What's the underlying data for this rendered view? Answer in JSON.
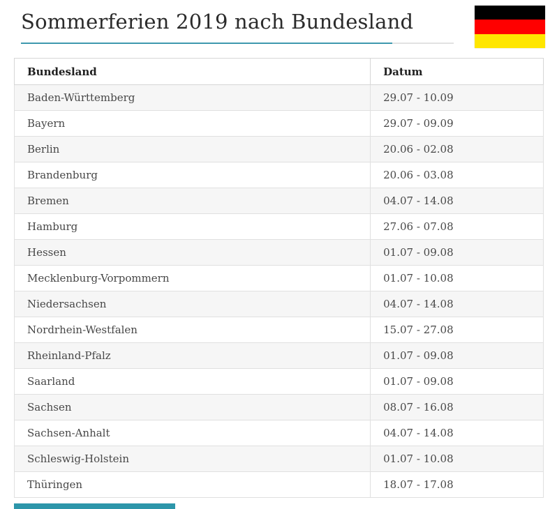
{
  "page": {
    "title": "Sommerferien 2019 nach Bundesland"
  },
  "flag": {
    "name": "german-flag",
    "stripes": [
      "#000000",
      "#ff0000",
      "#ffe600"
    ]
  },
  "accent": {
    "underline_teal": "#3e98ae",
    "underline_gray": "#e2e2e2",
    "bottom_bar": "#2d96aa"
  },
  "table": {
    "headers": [
      "Bundesland",
      "Datum"
    ],
    "rows": [
      {
        "bundesland": "Baden-Württemberg",
        "datum": "29.07 - 10.09"
      },
      {
        "bundesland": "Bayern",
        "datum": "29.07 - 09.09"
      },
      {
        "bundesland": "Berlin",
        "datum": "20.06 - 02.08"
      },
      {
        "bundesland": "Brandenburg",
        "datum": "20.06 - 03.08"
      },
      {
        "bundesland": "Bremen",
        "datum": "04.07 - 14.08"
      },
      {
        "bundesland": "Hamburg",
        "datum": "27.06 - 07.08"
      },
      {
        "bundesland": "Hessen",
        "datum": "01.07 - 09.08"
      },
      {
        "bundesland": "Mecklenburg-Vorpommern",
        "datum": "01.07 - 10.08"
      },
      {
        "bundesland": "Niedersachsen",
        "datum": "04.07 - 14.08"
      },
      {
        "bundesland": "Nordrhein-Westfalen",
        "datum": "15.07 - 27.08"
      },
      {
        "bundesland": "Rheinland-Pfalz",
        "datum": "01.07 - 09.08"
      },
      {
        "bundesland": "Saarland",
        "datum": "01.07 - 09.08"
      },
      {
        "bundesland": "Sachsen",
        "datum": "08.07 - 16.08"
      },
      {
        "bundesland": "Sachsen-Anhalt",
        "datum": "04.07 - 14.08"
      },
      {
        "bundesland": "Schleswig-Holstein",
        "datum": "01.07 - 10.08"
      },
      {
        "bundesland": "Thüringen",
        "datum": "18.07 - 17.08"
      }
    ]
  }
}
